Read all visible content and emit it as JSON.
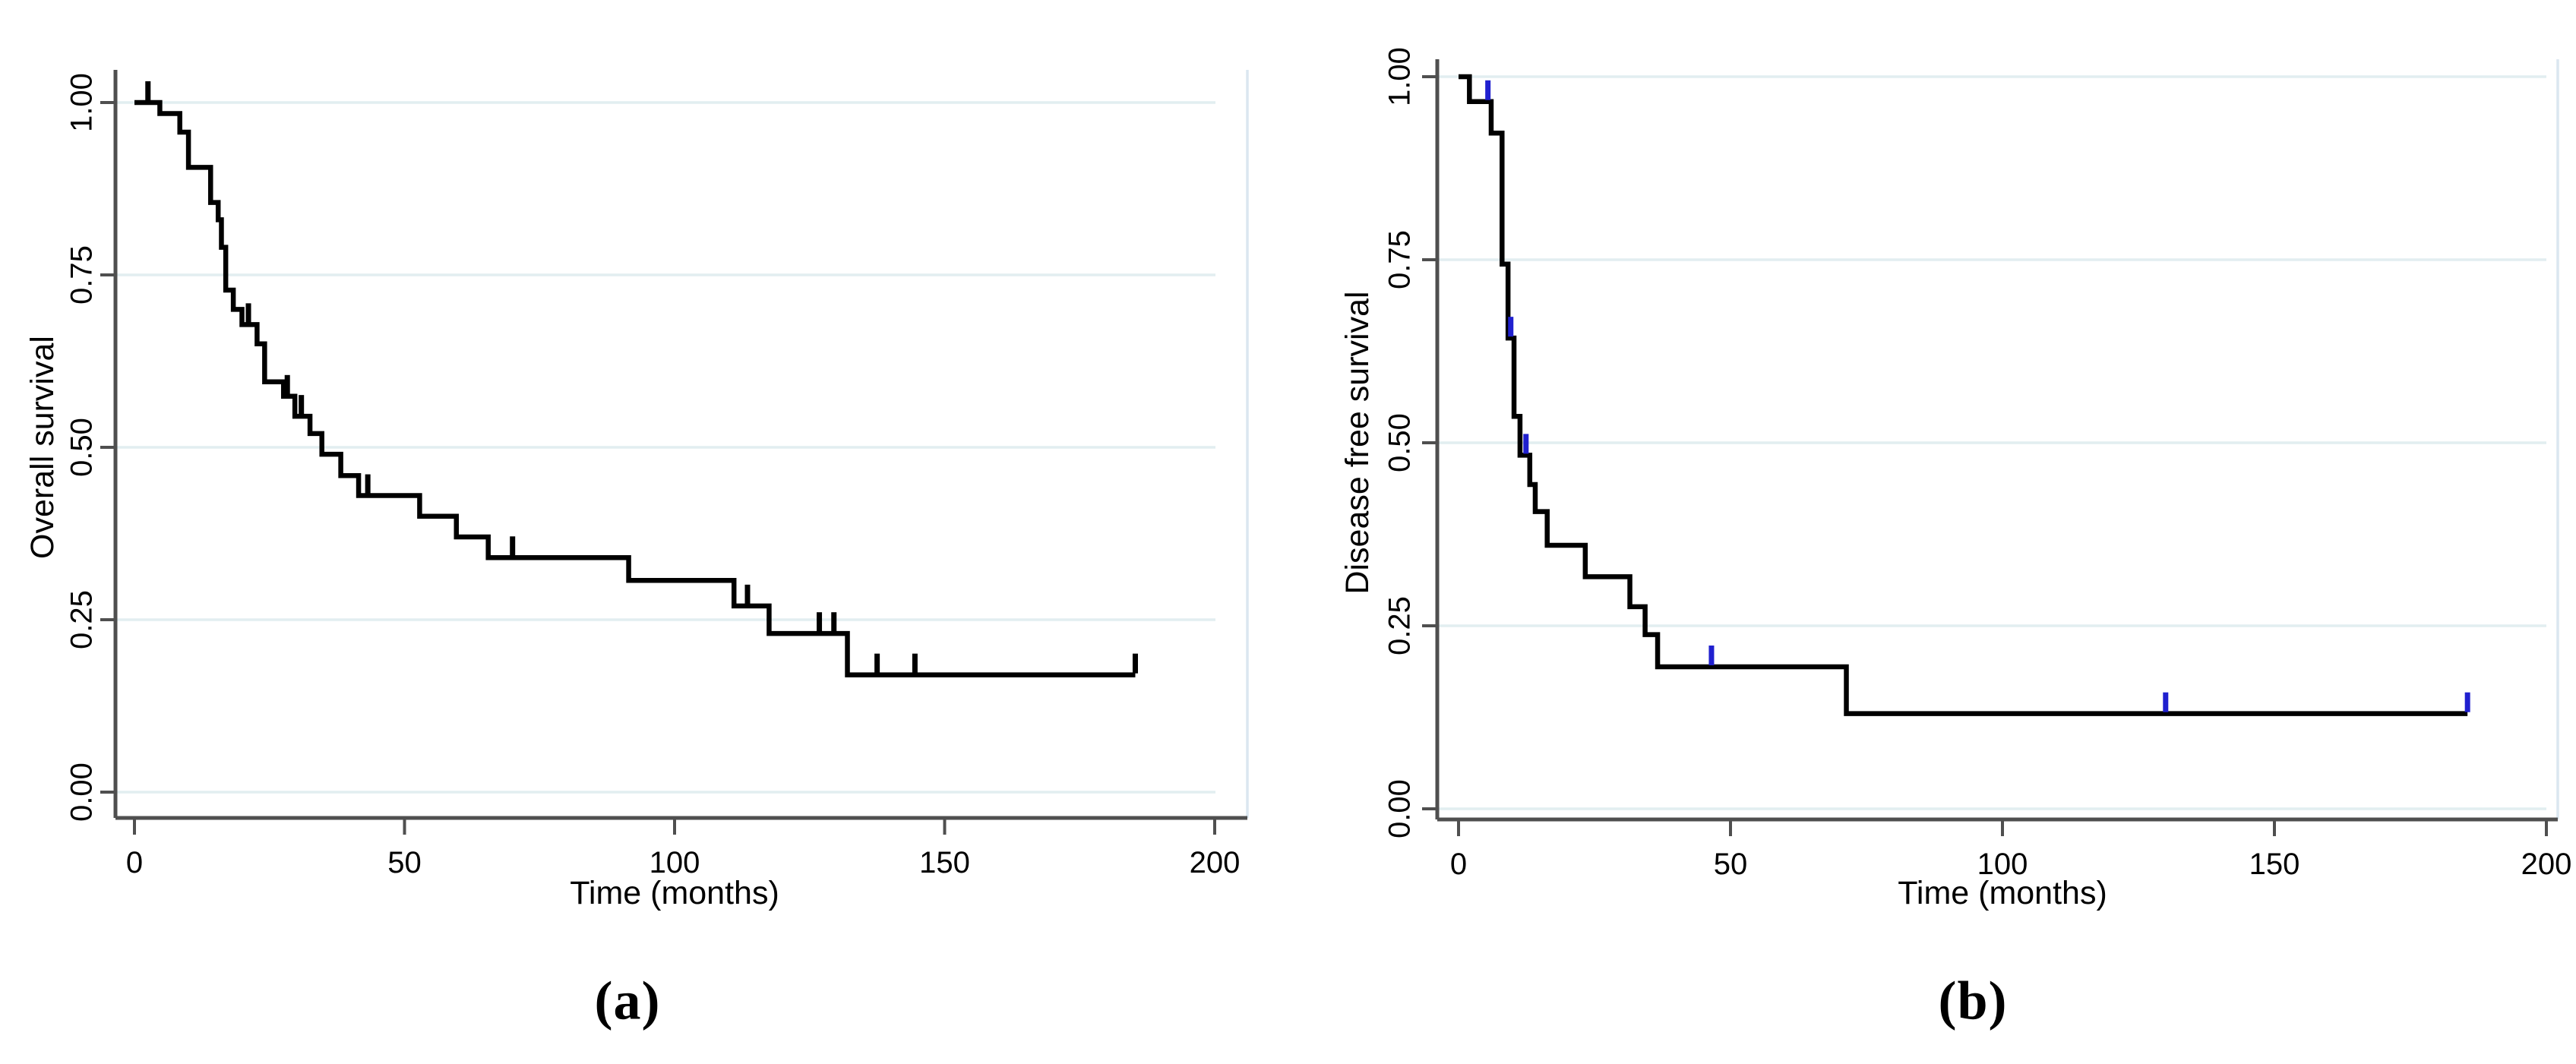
{
  "figure": {
    "background": "#ffffff",
    "captions": {
      "a": "(a)",
      "b": "(b)"
    },
    "colors": {
      "curve": "#000000",
      "censor_panel_a": "#000000",
      "censor_panel_b": "#2020cf",
      "gridline": "#e2eef0",
      "plot_border": "#dbe7f0",
      "axis": "#4f4f4f",
      "text": "#000000"
    }
  },
  "chart_data": [
    {
      "type": "line",
      "subtype": "kaplan-meier-step",
      "panel": "a",
      "ylabel": "Overall survival",
      "xlabel": "Time (months)",
      "xlim": [
        0,
        200
      ],
      "ylim": [
        0.0,
        1.0
      ],
      "grid": "horizontal",
      "legend_position": "none",
      "xticks": [
        {
          "v": 0,
          "label": "0"
        },
        {
          "v": 50,
          "label": "50"
        },
        {
          "v": 100,
          "label": "100"
        },
        {
          "v": 150,
          "label": "150"
        },
        {
          "v": 200,
          "label": "200"
        }
      ],
      "yticks": [
        {
          "v": 0.0,
          "label": "0.00"
        },
        {
          "v": 0.25,
          "label": "0.25"
        },
        {
          "v": 0.5,
          "label": "0.50"
        },
        {
          "v": 0.75,
          "label": "0.75"
        },
        {
          "v": 1.0,
          "label": "1.00"
        }
      ],
      "steps": [
        [
          0,
          1.0
        ],
        [
          4.7,
          0.984
        ],
        [
          8.4,
          0.957
        ],
        [
          10.0,
          0.906
        ],
        [
          14.1,
          0.855
        ],
        [
          15.5,
          0.83
        ],
        [
          16.1,
          0.79
        ],
        [
          16.9,
          0.728
        ],
        [
          18.3,
          0.7
        ],
        [
          19.9,
          0.678
        ],
        [
          22.7,
          0.65
        ],
        [
          24.1,
          0.595
        ],
        [
          27.6,
          0.574
        ],
        [
          29.7,
          0.545
        ],
        [
          32.5,
          0.52
        ],
        [
          34.7,
          0.49
        ],
        [
          38.2,
          0.459
        ],
        [
          41.5,
          0.43
        ],
        [
          52.8,
          0.4
        ],
        [
          59.6,
          0.37
        ],
        [
          65.5,
          0.34
        ],
        [
          91.5,
          0.307
        ],
        [
          111.0,
          0.27
        ],
        [
          117.5,
          0.23
        ],
        [
          132.0,
          0.17
        ]
      ],
      "end_time": 185.3,
      "censors": [
        [
          2.5,
          1.0
        ],
        [
          21.1,
          0.678
        ],
        [
          28.3,
          0.574
        ],
        [
          30.9,
          0.545
        ],
        [
          43.2,
          0.43
        ],
        [
          70.0,
          0.34
        ],
        [
          113.5,
          0.27
        ],
        [
          126.8,
          0.23
        ],
        [
          129.5,
          0.23
        ],
        [
          137.5,
          0.17
        ],
        [
          144.5,
          0.17
        ],
        [
          185.3,
          0.17
        ]
      ],
      "censor_color": "#000000"
    },
    {
      "type": "line",
      "subtype": "kaplan-meier-step",
      "panel": "b",
      "ylabel": "Disease free survival",
      "xlabel": "Time (months)",
      "xlim": [
        0,
        200
      ],
      "ylim": [
        0.0,
        1.0
      ],
      "grid": "horizontal",
      "legend_position": "none",
      "xticks": [
        {
          "v": 0,
          "label": "0"
        },
        {
          "v": 50,
          "label": "50"
        },
        {
          "v": 100,
          "label": "100"
        },
        {
          "v": 150,
          "label": "150"
        },
        {
          "v": 200,
          "label": "200"
        }
      ],
      "yticks": [
        {
          "v": 0.0,
          "label": "0.00"
        },
        {
          "v": 0.25,
          "label": "0.25"
        },
        {
          "v": 0.5,
          "label": "0.50"
        },
        {
          "v": 0.75,
          "label": "0.75"
        },
        {
          "v": 1.0,
          "label": "1.00"
        }
      ],
      "steps": [
        [
          0,
          1.0
        ],
        [
          2.0,
          0.966
        ],
        [
          6.0,
          0.923
        ],
        [
          8.0,
          0.744
        ],
        [
          9.1,
          0.643
        ],
        [
          10.2,
          0.536
        ],
        [
          11.3,
          0.483
        ],
        [
          13.1,
          0.443
        ],
        [
          14.1,
          0.406
        ],
        [
          16.3,
          0.36
        ],
        [
          23.3,
          0.317
        ],
        [
          31.5,
          0.276
        ],
        [
          34.3,
          0.238
        ],
        [
          36.6,
          0.194
        ],
        [
          71.3,
          0.13
        ]
      ],
      "end_time": 185.5,
      "censors": [
        [
          5.4,
          0.966
        ],
        [
          9.6,
          0.643
        ],
        [
          12.4,
          0.483
        ],
        [
          46.5,
          0.194
        ],
        [
          130.0,
          0.13
        ],
        [
          185.5,
          0.13
        ]
      ],
      "censor_color": "#2020cf"
    }
  ]
}
